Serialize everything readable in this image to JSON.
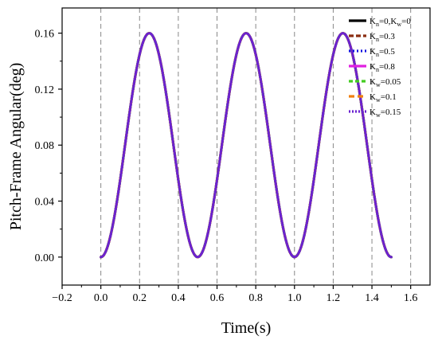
{
  "chart_data": {
    "type": "line",
    "title": "",
    "xlabel": "Time(s)",
    "ylabel": "Pitch-Frame Angular(deg)",
    "xlim": [
      -0.2,
      1.7
    ],
    "ylim": [
      -0.02,
      0.178
    ],
    "xticks": [
      -0.2,
      0.0,
      0.2,
      0.4,
      0.6,
      0.8,
      1.0,
      1.2,
      1.4,
      1.6
    ],
    "xtick_labels": [
      "−0.2",
      "0.0",
      "0.2",
      "0.4",
      "0.6",
      "0.8",
      "1.0",
      "1.2",
      "1.4",
      "1.6"
    ],
    "yticks": [
      0.0,
      0.04,
      0.08,
      0.12,
      0.16
    ],
    "ytick_labels": [
      "0.00",
      "0.04",
      "0.08",
      "0.12",
      "0.16"
    ],
    "grid": "vertical dashed lines at x ticks",
    "legend_position": "top-right",
    "curve": {
      "formula": "0.08*(1-cos(4*pi*t))",
      "t_start": 0.0,
      "t_end": 1.5,
      "peak_times": [
        0.25,
        0.75,
        1.25
      ],
      "peak_value": 0.16,
      "trough_times": [
        0.0,
        0.5,
        1.0,
        1.5
      ],
      "trough_value": 0.0
    },
    "series": [
      {
        "name": "Kn=0,Kw=0",
        "label_main": "K",
        "sub1": "n",
        "mid": "=0,K",
        "sub2": "w",
        "tail": "=0",
        "color": "#000000",
        "dash": "",
        "width": 3.2
      },
      {
        "name": "Kn=0.3",
        "label_main": "K",
        "sub1": "n",
        "mid": "=0.3",
        "sub2": "",
        "tail": "",
        "color": "#8B2E12",
        "dash": "6,3",
        "width": 3.0
      },
      {
        "name": "Kn=0.5",
        "label_main": "K",
        "sub1": "n",
        "mid": "=0.5",
        "sub2": "",
        "tail": "",
        "color": "#1515E0",
        "dash": "2,3",
        "width": 3.0
      },
      {
        "name": "Kn=0.8",
        "label_main": "K",
        "sub1": "n",
        "mid": "=0.8",
        "sub2": "",
        "tail": "",
        "color": "#E020E0",
        "dash": "",
        "width": 3.0
      },
      {
        "name": "Kw=0.05",
        "label_main": "K",
        "sub1": "w",
        "mid": "=0.05",
        "sub2": "",
        "tail": "",
        "color": "#44CC22",
        "dash": "5,3",
        "width": 3.0
      },
      {
        "name": "Kw=0.1",
        "label_main": "K",
        "sub1": "w",
        "mid": "=0.1",
        "sub2": "",
        "tail": "",
        "color": "#F08010",
        "dash": "7,4",
        "width": 3.0
      },
      {
        "name": "Kw=0.15",
        "label_main": "K",
        "sub1": "w",
        "mid": "=0.15",
        "sub2": "",
        "tail": "",
        "color": "#6A22D0",
        "dash": "2,2",
        "width": 3.0
      }
    ]
  }
}
